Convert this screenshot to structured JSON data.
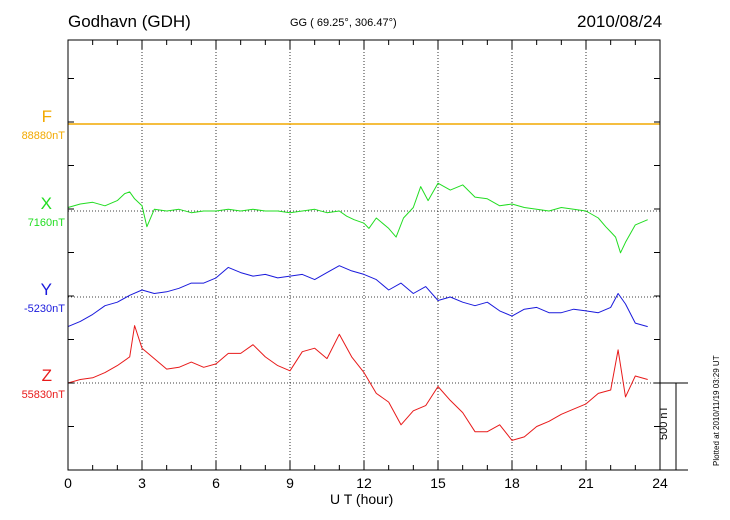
{
  "header": {
    "station": "Godhavn (GDH)",
    "coords": "GG ( 69.25°, 306.47°)",
    "date": "2010/08/24"
  },
  "footer": {
    "plotted_at": "Plotted at 2010/11/19 03:29 UT",
    "scale_label": "500 nT"
  },
  "chart_data": {
    "type": "line",
    "xlabel": "U T (hour)",
    "xlim": [
      0,
      24
    ],
    "xticks": [
      0,
      3,
      6,
      9,
      12,
      15,
      18,
      21,
      24
    ],
    "xtick_labels": [
      "0",
      "3",
      "6",
      "9",
      "12",
      "15",
      "18",
      "21",
      "24"
    ],
    "scale_bar_nT": 500,
    "grid": true,
    "series": [
      {
        "name": "F",
        "color": "#f2a900",
        "base_label": "88880nT",
        "base_nT": 88880,
        "x": [
          0,
          24
        ],
        "dev_nT": [
          0,
          0
        ]
      },
      {
        "name": "X",
        "color": "#22dd22",
        "base_label": "7160nT",
        "base_nT": 7160,
        "x": [
          0,
          0.5,
          1,
          1.5,
          2,
          2.3,
          2.5,
          2.7,
          3,
          3.2,
          3.5,
          4,
          4.5,
          5,
          5.5,
          6,
          6.5,
          7,
          7.5,
          8,
          8.5,
          9,
          9.5,
          10,
          10.5,
          11,
          11.3,
          11.6,
          12,
          12.2,
          12.5,
          13,
          13.3,
          13.6,
          14,
          14.3,
          14.6,
          15,
          15.5,
          16,
          16.5,
          17,
          17.5,
          18,
          18.5,
          19,
          19.5,
          20,
          20.5,
          21,
          21.5,
          21.8,
          22,
          22.2,
          22.4,
          22.6,
          23,
          23.5
        ],
        "dev_nT": [
          20,
          40,
          50,
          30,
          60,
          100,
          110,
          70,
          30,
          -90,
          10,
          0,
          10,
          -10,
          0,
          0,
          10,
          0,
          10,
          0,
          0,
          -10,
          0,
          10,
          -10,
          0,
          -30,
          -50,
          -70,
          -100,
          -40,
          -100,
          -150,
          -40,
          20,
          140,
          60,
          160,
          120,
          150,
          80,
          70,
          30,
          40,
          20,
          10,
          0,
          20,
          10,
          0,
          -40,
          -90,
          -120,
          -150,
          -240,
          -180,
          -80,
          -50
        ]
      },
      {
        "name": "Y",
        "color": "#1a1adc",
        "base_label": "-5230nT",
        "base_nT": -5230,
        "x": [
          0,
          0.5,
          1,
          1.5,
          2,
          2.5,
          3,
          3.5,
          4,
          4.5,
          5,
          5.5,
          6,
          6.5,
          7,
          7.5,
          8,
          8.5,
          9,
          9.5,
          10,
          10.5,
          11,
          11.5,
          12,
          12.5,
          13,
          13.5,
          14,
          14.5,
          15,
          15.5,
          16,
          16.5,
          17,
          17.5,
          18,
          18.5,
          19,
          19.5,
          20,
          20.5,
          21,
          21.5,
          22,
          22.3,
          22.6,
          23,
          23.5
        ],
        "dev_nT": [
          -170,
          -140,
          -100,
          -50,
          -30,
          10,
          40,
          20,
          30,
          50,
          80,
          80,
          110,
          170,
          140,
          120,
          130,
          110,
          120,
          130,
          100,
          140,
          180,
          150,
          130,
          100,
          40,
          80,
          20,
          60,
          -20,
          0,
          -30,
          -50,
          -30,
          -80,
          -110,
          -70,
          -60,
          -90,
          -90,
          -70,
          -80,
          -90,
          -60,
          20,
          -40,
          -150,
          -170
        ]
      },
      {
        "name": "Z",
        "color": "#e81a1a",
        "base_label": "55830nT",
        "base_nT": 55830,
        "x": [
          0,
          0.5,
          1,
          1.5,
          2,
          2.5,
          2.7,
          3,
          3.5,
          4,
          4.5,
          5,
          5.5,
          6,
          6.5,
          7,
          7.5,
          8,
          8.5,
          9,
          9.5,
          10,
          10.5,
          11,
          11.5,
          12,
          12.5,
          13,
          13.5,
          14,
          14.5,
          15,
          15.5,
          16,
          16.5,
          17,
          17.5,
          18,
          18.5,
          19,
          19.5,
          20,
          20.5,
          21,
          21.5,
          22,
          22.3,
          22.6,
          23,
          23.5
        ],
        "dev_nT": [
          0,
          20,
          30,
          60,
          100,
          150,
          330,
          200,
          140,
          80,
          90,
          120,
          90,
          110,
          170,
          170,
          220,
          150,
          100,
          70,
          180,
          200,
          140,
          280,
          150,
          60,
          -60,
          -110,
          -240,
          -160,
          -130,
          -20,
          -100,
          -170,
          -280,
          -280,
          -240,
          -330,
          -310,
          -250,
          -220,
          -180,
          -150,
          -120,
          -60,
          -40,
          190,
          -80,
          40,
          20
        ]
      }
    ]
  }
}
